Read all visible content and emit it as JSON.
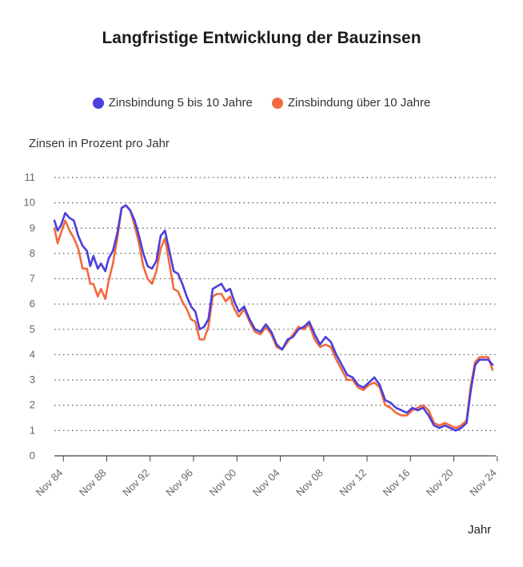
{
  "chart_data": {
    "type": "line",
    "title": "Langfristige Entwicklung der Bauzinsen",
    "ylabel": "Zinsen in Prozent pro Jahr",
    "xlabel": "Jahr",
    "ylim": [
      0,
      11
    ],
    "y_ticks": [
      "0",
      "1",
      "2",
      "3",
      "4",
      "5",
      "6",
      "7",
      "8",
      "9",
      "10",
      "11"
    ],
    "x_ticks": [
      "Nov 84",
      "Nov 88",
      "Nov 92",
      "Nov 96",
      "Nov 00",
      "Nov 04",
      "Nov 08",
      "Nov 12",
      "Nov 16",
      "Nov 20",
      "Nov 24"
    ],
    "x_tick_years": [
      1984.83,
      1988.83,
      1992.83,
      1996.83,
      2000.83,
      2004.83,
      2008.83,
      2012.83,
      2016.83,
      2020.83,
      2024.83
    ],
    "xlim": [
      1984.0,
      2024.7
    ],
    "grid": "dotted-horizontal",
    "legend": "top-center",
    "series": [
      {
        "name": "Zinsbindung 5 bis 10 Jahre",
        "color": "#4a3fdc",
        "x": [
          1984.0,
          1984.3,
          1984.6,
          1985.0,
          1985.4,
          1985.8,
          1986.2,
          1986.6,
          1987.0,
          1987.3,
          1987.6,
          1988.0,
          1988.3,
          1988.7,
          1989.0,
          1989.4,
          1989.8,
          1990.2,
          1990.6,
          1991.0,
          1991.4,
          1991.8,
          1992.2,
          1992.6,
          1993.0,
          1993.4,
          1993.8,
          1994.2,
          1994.6,
          1995.0,
          1995.4,
          1995.8,
          1996.2,
          1996.6,
          1997.0,
          1997.4,
          1997.8,
          1998.2,
          1998.6,
          1999.0,
          1999.4,
          1999.8,
          2000.2,
          2000.6,
          2001.0,
          2001.5,
          2002.0,
          2002.5,
          2003.0,
          2003.5,
          2004.0,
          2004.5,
          2005.0,
          2005.5,
          2006.0,
          2006.5,
          2007.0,
          2007.5,
          2008.0,
          2008.5,
          2009.0,
          2009.5,
          2010.0,
          2010.5,
          2011.0,
          2011.5,
          2012.0,
          2012.5,
          2013.0,
          2013.5,
          2014.0,
          2014.5,
          2015.0,
          2015.5,
          2016.0,
          2016.5,
          2017.0,
          2017.5,
          2018.0,
          2018.5,
          2019.0,
          2019.5,
          2020.0,
          2020.5,
          2021.0,
          2021.5,
          2022.0,
          2022.4,
          2022.8,
          2023.2,
          2023.6,
          2024.0,
          2024.4
        ],
        "values": [
          9.3,
          8.9,
          9.1,
          9.6,
          9.4,
          9.3,
          8.7,
          8.3,
          8.1,
          7.5,
          7.9,
          7.4,
          7.6,
          7.3,
          7.8,
          8.1,
          8.8,
          9.8,
          9.9,
          9.7,
          9.3,
          8.7,
          8.0,
          7.5,
          7.4,
          7.7,
          8.7,
          8.9,
          8.1,
          7.3,
          7.2,
          6.8,
          6.3,
          5.9,
          5.7,
          5.0,
          5.1,
          5.4,
          6.6,
          6.7,
          6.8,
          6.5,
          6.6,
          6.1,
          5.7,
          5.9,
          5.4,
          5.0,
          4.9,
          5.2,
          4.9,
          4.4,
          4.2,
          4.6,
          4.7,
          5.0,
          5.1,
          5.3,
          4.8,
          4.4,
          4.7,
          4.5,
          4.0,
          3.6,
          3.2,
          3.1,
          2.8,
          2.7,
          2.9,
          3.1,
          2.8,
          2.2,
          2.1,
          1.9,
          1.8,
          1.7,
          1.9,
          1.8,
          1.9,
          1.6,
          1.2,
          1.1,
          1.2,
          1.1,
          1.0,
          1.1,
          1.3,
          2.6,
          3.6,
          3.8,
          3.8,
          3.8,
          3.6
        ]
      },
      {
        "name": "Zinsbindung über 10 Jahre",
        "color": "#f26a3d",
        "x": [
          1984.0,
          1984.3,
          1984.6,
          1985.0,
          1985.4,
          1985.8,
          1986.2,
          1986.6,
          1987.0,
          1987.3,
          1987.6,
          1988.0,
          1988.3,
          1988.7,
          1989.0,
          1989.4,
          1989.8,
          1990.2,
          1990.6,
          1991.0,
          1991.4,
          1991.8,
          1992.2,
          1992.6,
          1993.0,
          1993.4,
          1993.8,
          1994.2,
          1994.6,
          1995.0,
          1995.4,
          1995.8,
          1996.2,
          1996.6,
          1997.0,
          1997.4,
          1997.8,
          1998.2,
          1998.6,
          1999.0,
          1999.4,
          1999.8,
          2000.2,
          2000.6,
          2001.0,
          2001.5,
          2002.0,
          2002.5,
          2003.0,
          2003.5,
          2004.0,
          2004.5,
          2005.0,
          2005.5,
          2006.0,
          2006.5,
          2007.0,
          2007.5,
          2008.0,
          2008.5,
          2009.0,
          2009.5,
          2010.0,
          2010.5,
          2011.0,
          2011.5,
          2012.0,
          2012.5,
          2013.0,
          2013.5,
          2014.0,
          2014.5,
          2015.0,
          2015.5,
          2016.0,
          2016.5,
          2017.0,
          2017.5,
          2018.0,
          2018.5,
          2019.0,
          2019.5,
          2020.0,
          2020.5,
          2021.0,
          2021.5,
          2022.0,
          2022.4,
          2022.8,
          2023.2,
          2023.6,
          2024.0,
          2024.4
        ],
        "values": [
          9.0,
          8.4,
          8.8,
          9.3,
          8.9,
          8.6,
          8.2,
          7.4,
          7.4,
          6.8,
          6.8,
          6.3,
          6.6,
          6.2,
          6.9,
          7.6,
          8.6,
          9.8,
          9.9,
          9.7,
          9.1,
          8.4,
          7.5,
          7.0,
          6.8,
          7.3,
          8.2,
          8.6,
          7.6,
          6.6,
          6.5,
          6.1,
          5.8,
          5.4,
          5.3,
          4.6,
          4.6,
          5.1,
          6.3,
          6.4,
          6.4,
          6.1,
          6.3,
          5.8,
          5.5,
          5.8,
          5.3,
          4.9,
          4.8,
          5.1,
          4.8,
          4.3,
          4.2,
          4.5,
          4.8,
          5.1,
          5.0,
          5.2,
          4.6,
          4.3,
          4.4,
          4.3,
          3.8,
          3.4,
          3.0,
          3.0,
          2.7,
          2.6,
          2.8,
          2.9,
          2.7,
          2.0,
          1.9,
          1.7,
          1.6,
          1.6,
          1.8,
          1.9,
          2.0,
          1.8,
          1.3,
          1.2,
          1.3,
          1.2,
          1.1,
          1.2,
          1.4,
          2.8,
          3.7,
          3.9,
          3.9,
          3.9,
          3.4
        ]
      }
    ]
  }
}
